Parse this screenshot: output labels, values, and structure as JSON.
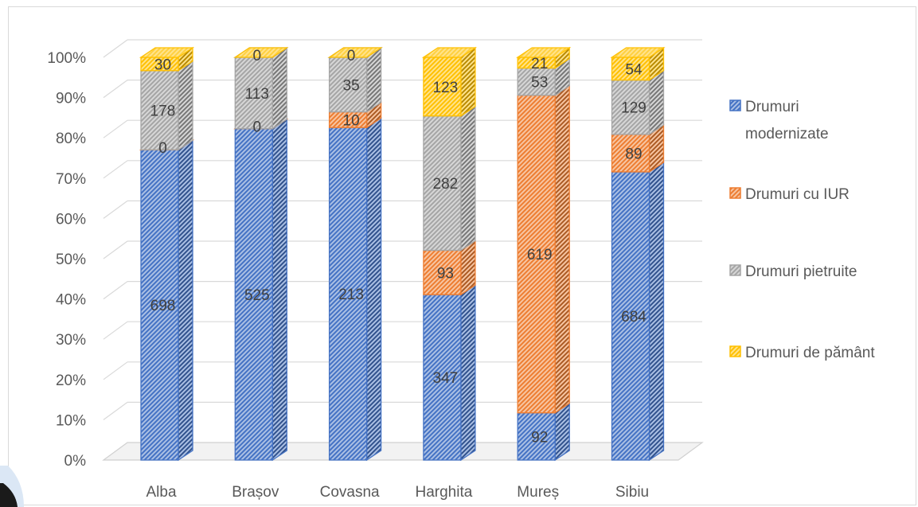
{
  "chart_data": {
    "type": "bar",
    "stacked": "percent",
    "three_d": true,
    "categories": [
      "Alba",
      "Brașov",
      "Covasna",
      "Harghita",
      "Mureș",
      "Sibiu"
    ],
    "series": [
      {
        "name": "Drumuri modernizate",
        "color": "#4472c4",
        "values": [
          698,
          525,
          213,
          347,
          92,
          684
        ]
      },
      {
        "name": "Drumuri cu IUR",
        "color": "#ed7d31",
        "values": [
          0,
          0,
          10,
          93,
          619,
          89
        ]
      },
      {
        "name": "Drumuri pietruite",
        "color": "#a5a5a5",
        "values": [
          178,
          113,
          35,
          282,
          53,
          129
        ]
      },
      {
        "name": "Drumuri de pământ",
        "color": "#ffc000",
        "values": [
          30,
          0,
          0,
          123,
          21,
          54
        ]
      }
    ],
    "yticks": [
      "0%",
      "10%",
      "20%",
      "30%",
      "40%",
      "50%",
      "60%",
      "70%",
      "80%",
      "90%",
      "100%"
    ],
    "ylim": [
      0,
      100
    ],
    "legend": [
      "Drumuri modernizate",
      "Drumuri cu IUR",
      "Drumuri pietruite",
      "Drumuri de pământ"
    ],
    "legend_position": "right",
    "grid": true,
    "title": "",
    "xlabel": "",
    "ylabel": ""
  }
}
